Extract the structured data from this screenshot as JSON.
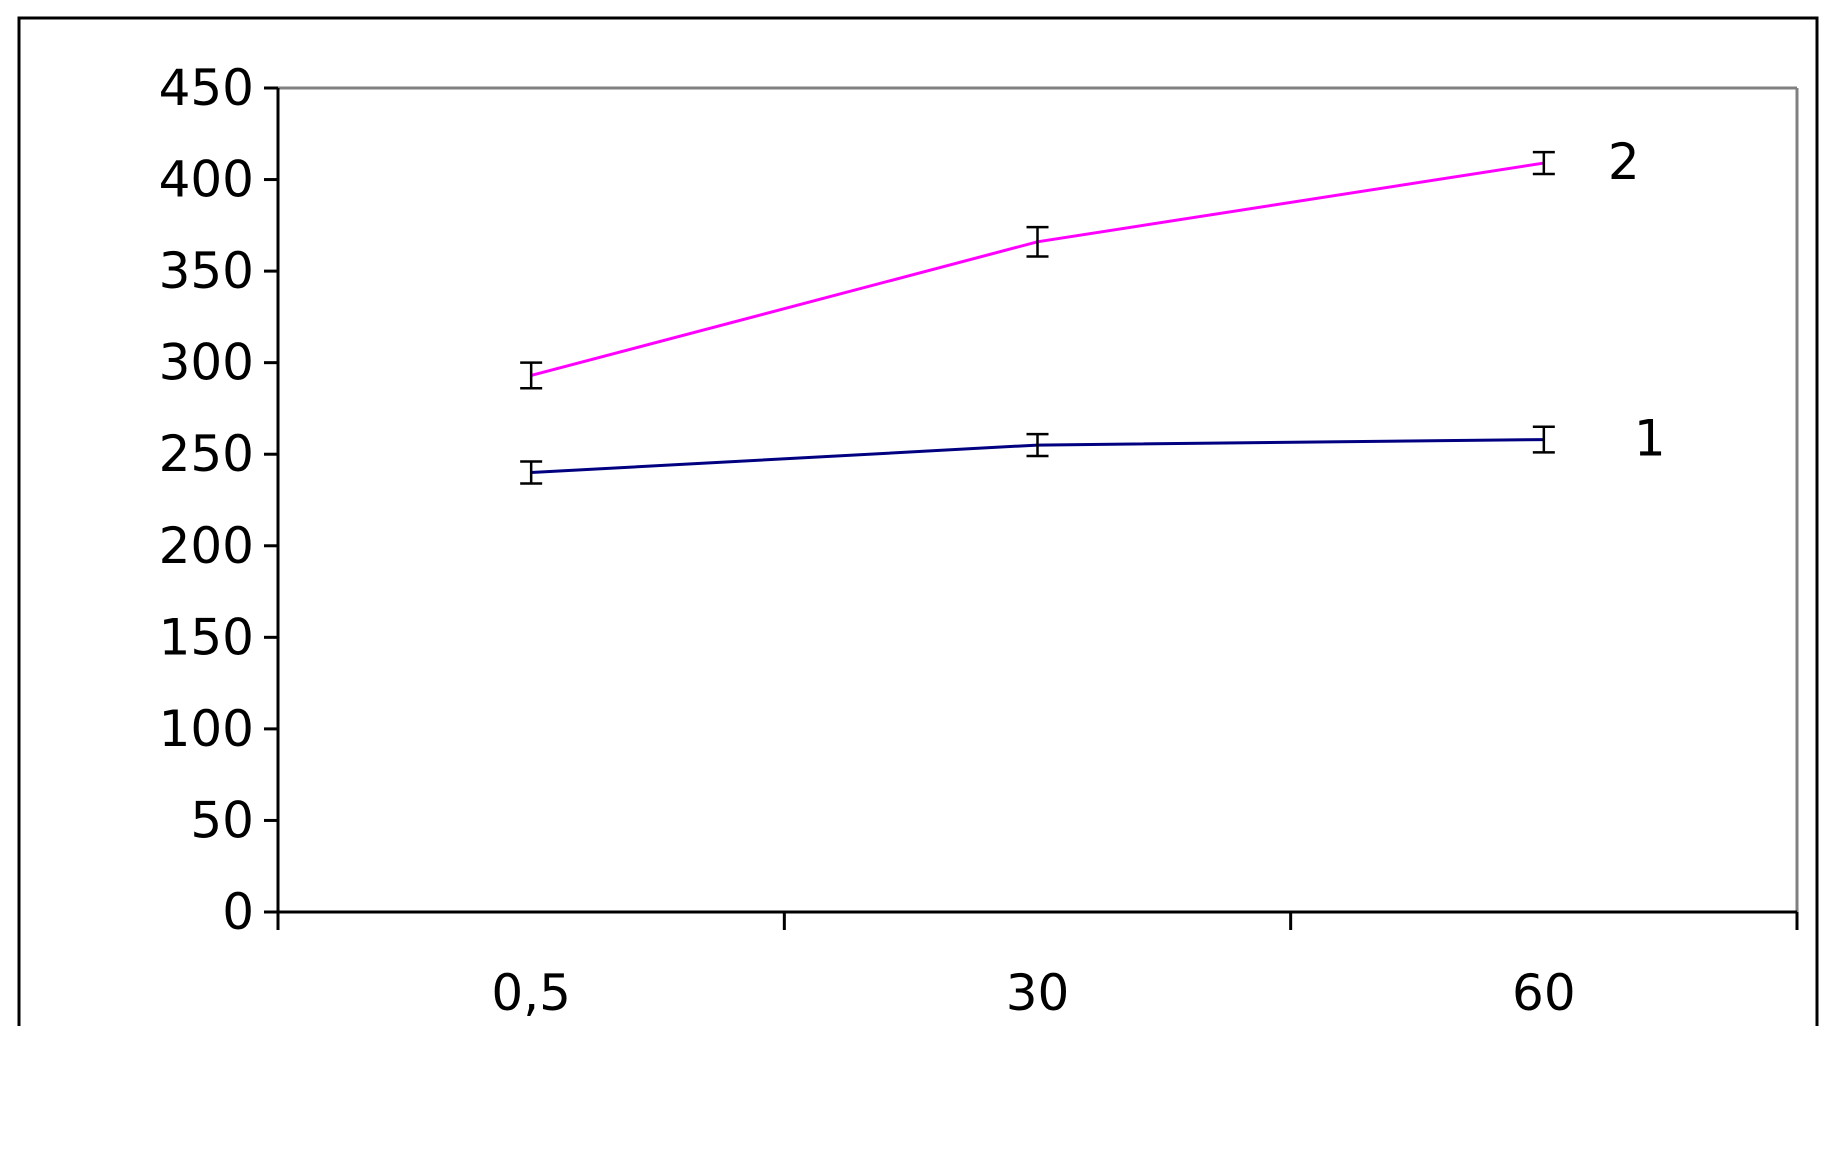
{
  "chart_data": {
    "type": "line",
    "title": "",
    "xlabel": "",
    "ylabel": "",
    "categories": [
      "0,5",
      "30",
      "60"
    ],
    "ylim": [
      0,
      450
    ],
    "yticks": [
      0,
      50,
      100,
      150,
      200,
      250,
      300,
      350,
      400,
      450
    ],
    "grid": false,
    "error_bars": true,
    "series": [
      {
        "name": "1",
        "color": "#000080",
        "values": [
          240,
          255,
          258
        ],
        "errors": [
          6,
          6,
          7
        ]
      },
      {
        "name": "2",
        "color": "#ff00ff",
        "values": [
          293,
          366,
          409
        ],
        "errors": [
          7,
          8,
          6
        ]
      }
    ]
  }
}
